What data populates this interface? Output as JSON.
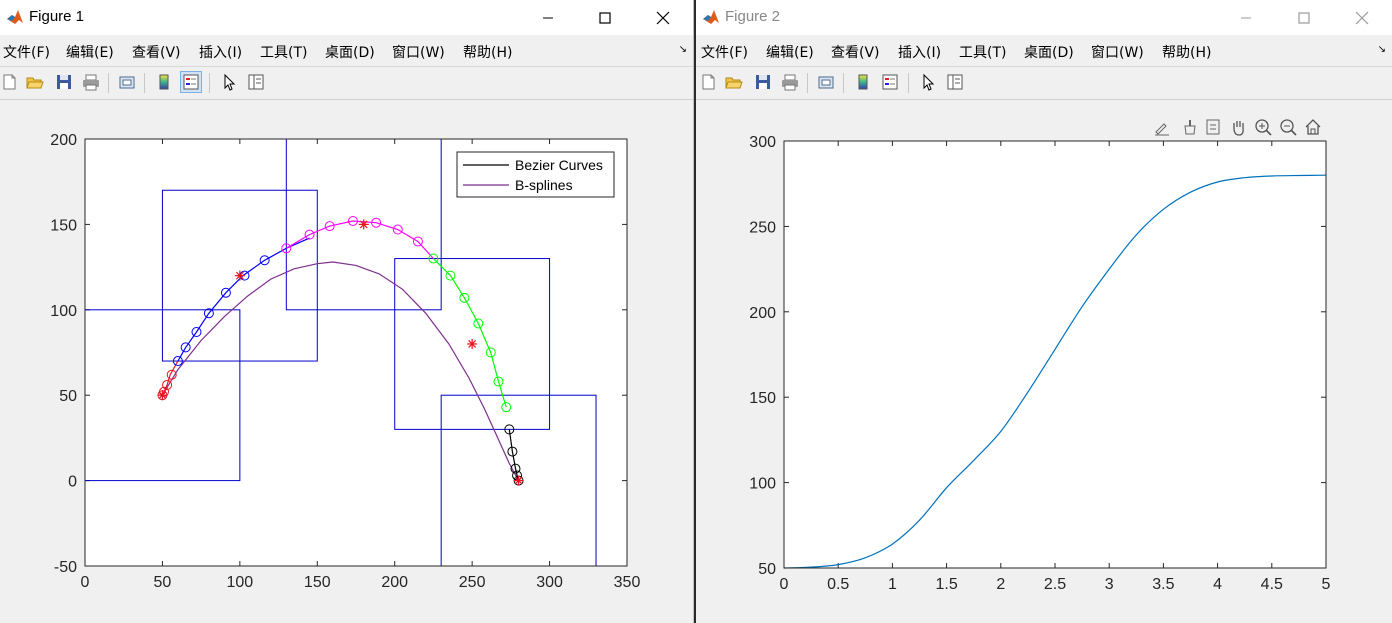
{
  "window1": {
    "title": "Figure 1",
    "menu": [
      "文件(F)",
      "编辑(E)",
      "查看(V)",
      "插入(I)",
      "工具(T)",
      "桌面(D)",
      "窗口(W)",
      "帮助(H)"
    ],
    "toolbar_icons": [
      "new-figure-icon",
      "open-file-icon",
      "save-icon",
      "print-icon",
      "print-preview-icon",
      "colorbar-icon",
      "legend-icon",
      "pointer-icon",
      "property-inspector-icon"
    ]
  },
  "window2": {
    "title": "Figure 2",
    "menu": [
      "文件(F)",
      "编辑(E)",
      "查看(V)",
      "插入(I)",
      "工具(T)",
      "桌面(D)",
      "窗口(W)",
      "帮助(H)"
    ],
    "toolbar_icons": [
      "new-figure-icon",
      "open-file-icon",
      "save-icon",
      "print-icon",
      "print-preview-icon",
      "colorbar-icon",
      "legend-icon",
      "pointer-icon",
      "property-inspector-icon"
    ],
    "axes_toolbar_icons": [
      "brush-edit-icon",
      "data-brush-icon",
      "data-tips-icon",
      "pan-icon",
      "zoom-in-icon",
      "zoom-out-icon",
      "home-icon"
    ]
  },
  "chart_data": [
    {
      "type": "line",
      "xlim": [
        0,
        350
      ],
      "ylim": [
        -50,
        200
      ],
      "xticks": [
        0,
        50,
        100,
        150,
        200,
        250,
        300,
        350
      ],
      "yticks": [
        -50,
        0,
        50,
        100,
        150,
        200
      ],
      "legend": {
        "placement": "top-right",
        "entries": [
          "Bezier Curves",
          "B-splines"
        ]
      },
      "colors": {
        "axes_blue": "#0000cc",
        "red": "#e8141e",
        "blue": "#0000ff",
        "magenta": "#ff00ff",
        "green": "#00ff00",
        "black": "#000000",
        "purple": "#7e2f8e"
      },
      "rectangles": [
        {
          "x": [
            0,
            100
          ],
          "y": [
            0,
            100
          ]
        },
        {
          "x": [
            50,
            150
          ],
          "y": [
            70,
            170
          ]
        },
        {
          "x": [
            130,
            230
          ],
          "y": [
            100,
            200
          ]
        },
        {
          "x": [
            200,
            300
          ],
          "y": [
            30,
            130
          ]
        },
        {
          "x": [
            230,
            330
          ],
          "y": [
            -50,
            50
          ]
        }
      ],
      "control_points": [
        [
          50,
          50
        ],
        [
          100,
          120
        ],
        [
          180,
          150
        ],
        [
          250,
          80
        ],
        [
          280,
          0
        ]
      ],
      "bezier_segments": [
        {
          "color": "red",
          "points": [
            [
              280,
              0
            ],
            [
              280,
              0.4
            ],
            [
              279,
              7
            ],
            [
              276,
              17
            ],
            [
              274,
              30
            ]
          ],
          "draw_line": false
        },
        {
          "color": "red",
          "points": [
            [
              50,
              50
            ],
            [
              51,
              52
            ],
            [
              53,
              56
            ],
            [
              55,
              62
            ],
            [
              60,
              70
            ]
          ]
        },
        {
          "color": "blue",
          "points": [
            [
              60,
              70
            ],
            [
              65,
              78
            ],
            [
              72,
              87
            ],
            [
              80,
              98
            ],
            [
              91,
              110
            ],
            [
              102,
              120
            ],
            [
              116,
              129
            ],
            [
              130,
              136
            ],
            [
              145,
              142
            ]
          ]
        },
        {
          "color": "magenta",
          "points": [
            [
              130,
              136
            ],
            [
              145,
              144
            ],
            [
              158,
              149
            ],
            [
              173,
              152
            ],
            [
              188,
              151
            ],
            [
              202,
              147
            ],
            [
              215,
              140
            ],
            [
              225,
              130
            ]
          ]
        },
        {
          "color": "green",
          "points": [
            [
              225,
              130
            ],
            [
              236,
              120
            ],
            [
              245,
              107
            ],
            [
              254,
              92
            ],
            [
              262,
              75
            ],
            [
              267,
              58
            ],
            [
              272,
              43
            ]
          ]
        },
        {
          "color": "black",
          "points": [
            [
              274,
              30
            ],
            [
              276,
              17
            ],
            [
              278,
              7
            ],
            [
              279,
              3
            ],
            [
              280,
              0
            ]
          ]
        }
      ],
      "circle_markers": {
        "red": [
          [
            50,
            50
          ],
          [
            51,
            52
          ],
          [
            53,
            56
          ],
          [
            56,
            62
          ]
        ],
        "blue": [
          [
            60,
            70
          ],
          [
            65,
            78
          ],
          [
            72,
            87
          ],
          [
            80,
            98
          ],
          [
            91,
            110
          ],
          [
            103,
            120
          ],
          [
            116,
            129
          ]
        ],
        "magenta": [
          [
            130,
            136
          ],
          [
            145,
            144
          ],
          [
            158,
            149
          ],
          [
            173,
            152
          ],
          [
            188,
            151
          ],
          [
            202,
            147
          ],
          [
            215,
            140
          ]
        ],
        "green": [
          [
            225,
            130
          ],
          [
            236,
            120
          ],
          [
            245,
            107
          ],
          [
            254,
            92
          ],
          [
            262,
            75
          ],
          [
            267,
            58
          ],
          [
            272,
            43
          ]
        ],
        "black": [
          [
            274,
            30
          ],
          [
            276,
            17
          ],
          [
            278,
            7
          ],
          [
            279,
            3
          ],
          [
            280,
            0
          ]
        ]
      },
      "bspline": {
        "color": "purple",
        "points": [
          [
            50,
            50
          ],
          [
            60,
            65
          ],
          [
            75,
            82
          ],
          [
            90,
            96
          ],
          [
            105,
            108
          ],
          [
            120,
            118
          ],
          [
            135,
            124
          ],
          [
            150,
            127
          ],
          [
            160,
            128
          ],
          [
            175,
            126
          ],
          [
            190,
            121
          ],
          [
            205,
            112
          ],
          [
            220,
            98
          ],
          [
            235,
            80
          ],
          [
            248,
            60
          ],
          [
            258,
            42
          ],
          [
            267,
            24
          ],
          [
            274,
            10
          ],
          [
            280,
            0
          ]
        ]
      }
    },
    {
      "type": "line",
      "xlim": [
        0,
        5
      ],
      "ylim": [
        50,
        300
      ],
      "xticks": [
        0,
        0.5,
        1,
        1.5,
        2,
        2.5,
        3,
        3.5,
        4,
        4.5,
        5
      ],
      "yticks": [
        50,
        100,
        150,
        200,
        250,
        300
      ],
      "series": [
        {
          "color": "#0072bd",
          "x": [
            0,
            0.25,
            0.5,
            0.75,
            1,
            1.25,
            1.5,
            1.75,
            2,
            2.25,
            2.5,
            2.75,
            3,
            3.25,
            3.5,
            3.75,
            4,
            4.25,
            4.5,
            4.75,
            5
          ],
          "y": [
            50,
            50.5,
            52,
            56,
            64,
            78,
            97,
            113,
            130,
            153,
            178,
            203,
            225,
            245,
            260,
            270,
            276,
            278.5,
            279.5,
            279.8,
            280
          ]
        }
      ]
    }
  ]
}
